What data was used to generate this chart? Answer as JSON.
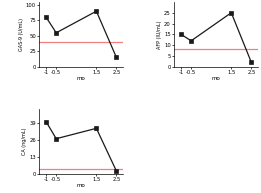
{
  "x": [
    -1,
    -0.5,
    1.5,
    2.5
  ],
  "plot1": {
    "y": [
      80,
      55,
      90,
      15
    ],
    "ylabel": "GAS-9 (U/mL)",
    "ylim": [
      0,
      105
    ],
    "yticks": [
      0,
      25,
      50,
      75,
      100
    ],
    "hline": 40,
    "hline_color": "#f08080"
  },
  "plot2": {
    "y": [
      15,
      12,
      25,
      2
    ],
    "ylabel": "AFP (IU/mL)",
    "ylim": [
      0,
      30
    ],
    "yticks": [
      0,
      5,
      10,
      15,
      20,
      25
    ],
    "hline": 8,
    "hline_color": "#f08080"
  },
  "plot3": {
    "y": [
      40,
      27,
      35,
      2
    ],
    "ylabel": "CA (ng/mL)",
    "ylim": [
      0,
      50
    ],
    "yticks": [
      0,
      13,
      26,
      39
    ],
    "hline": 4,
    "hline_color": "#f08080"
  },
  "xlabel": "mo",
  "xticks": [
    -1,
    -0.5,
    1.5,
    2.5
  ],
  "xticklabels": [
    "-1",
    "-0.5",
    "1.5",
    "2.5"
  ],
  "xlim": [
    -1.35,
    2.85
  ],
  "line_color": "#1a1a1a",
  "marker": "s",
  "markersize": 2.8,
  "linewidth": 0.9
}
